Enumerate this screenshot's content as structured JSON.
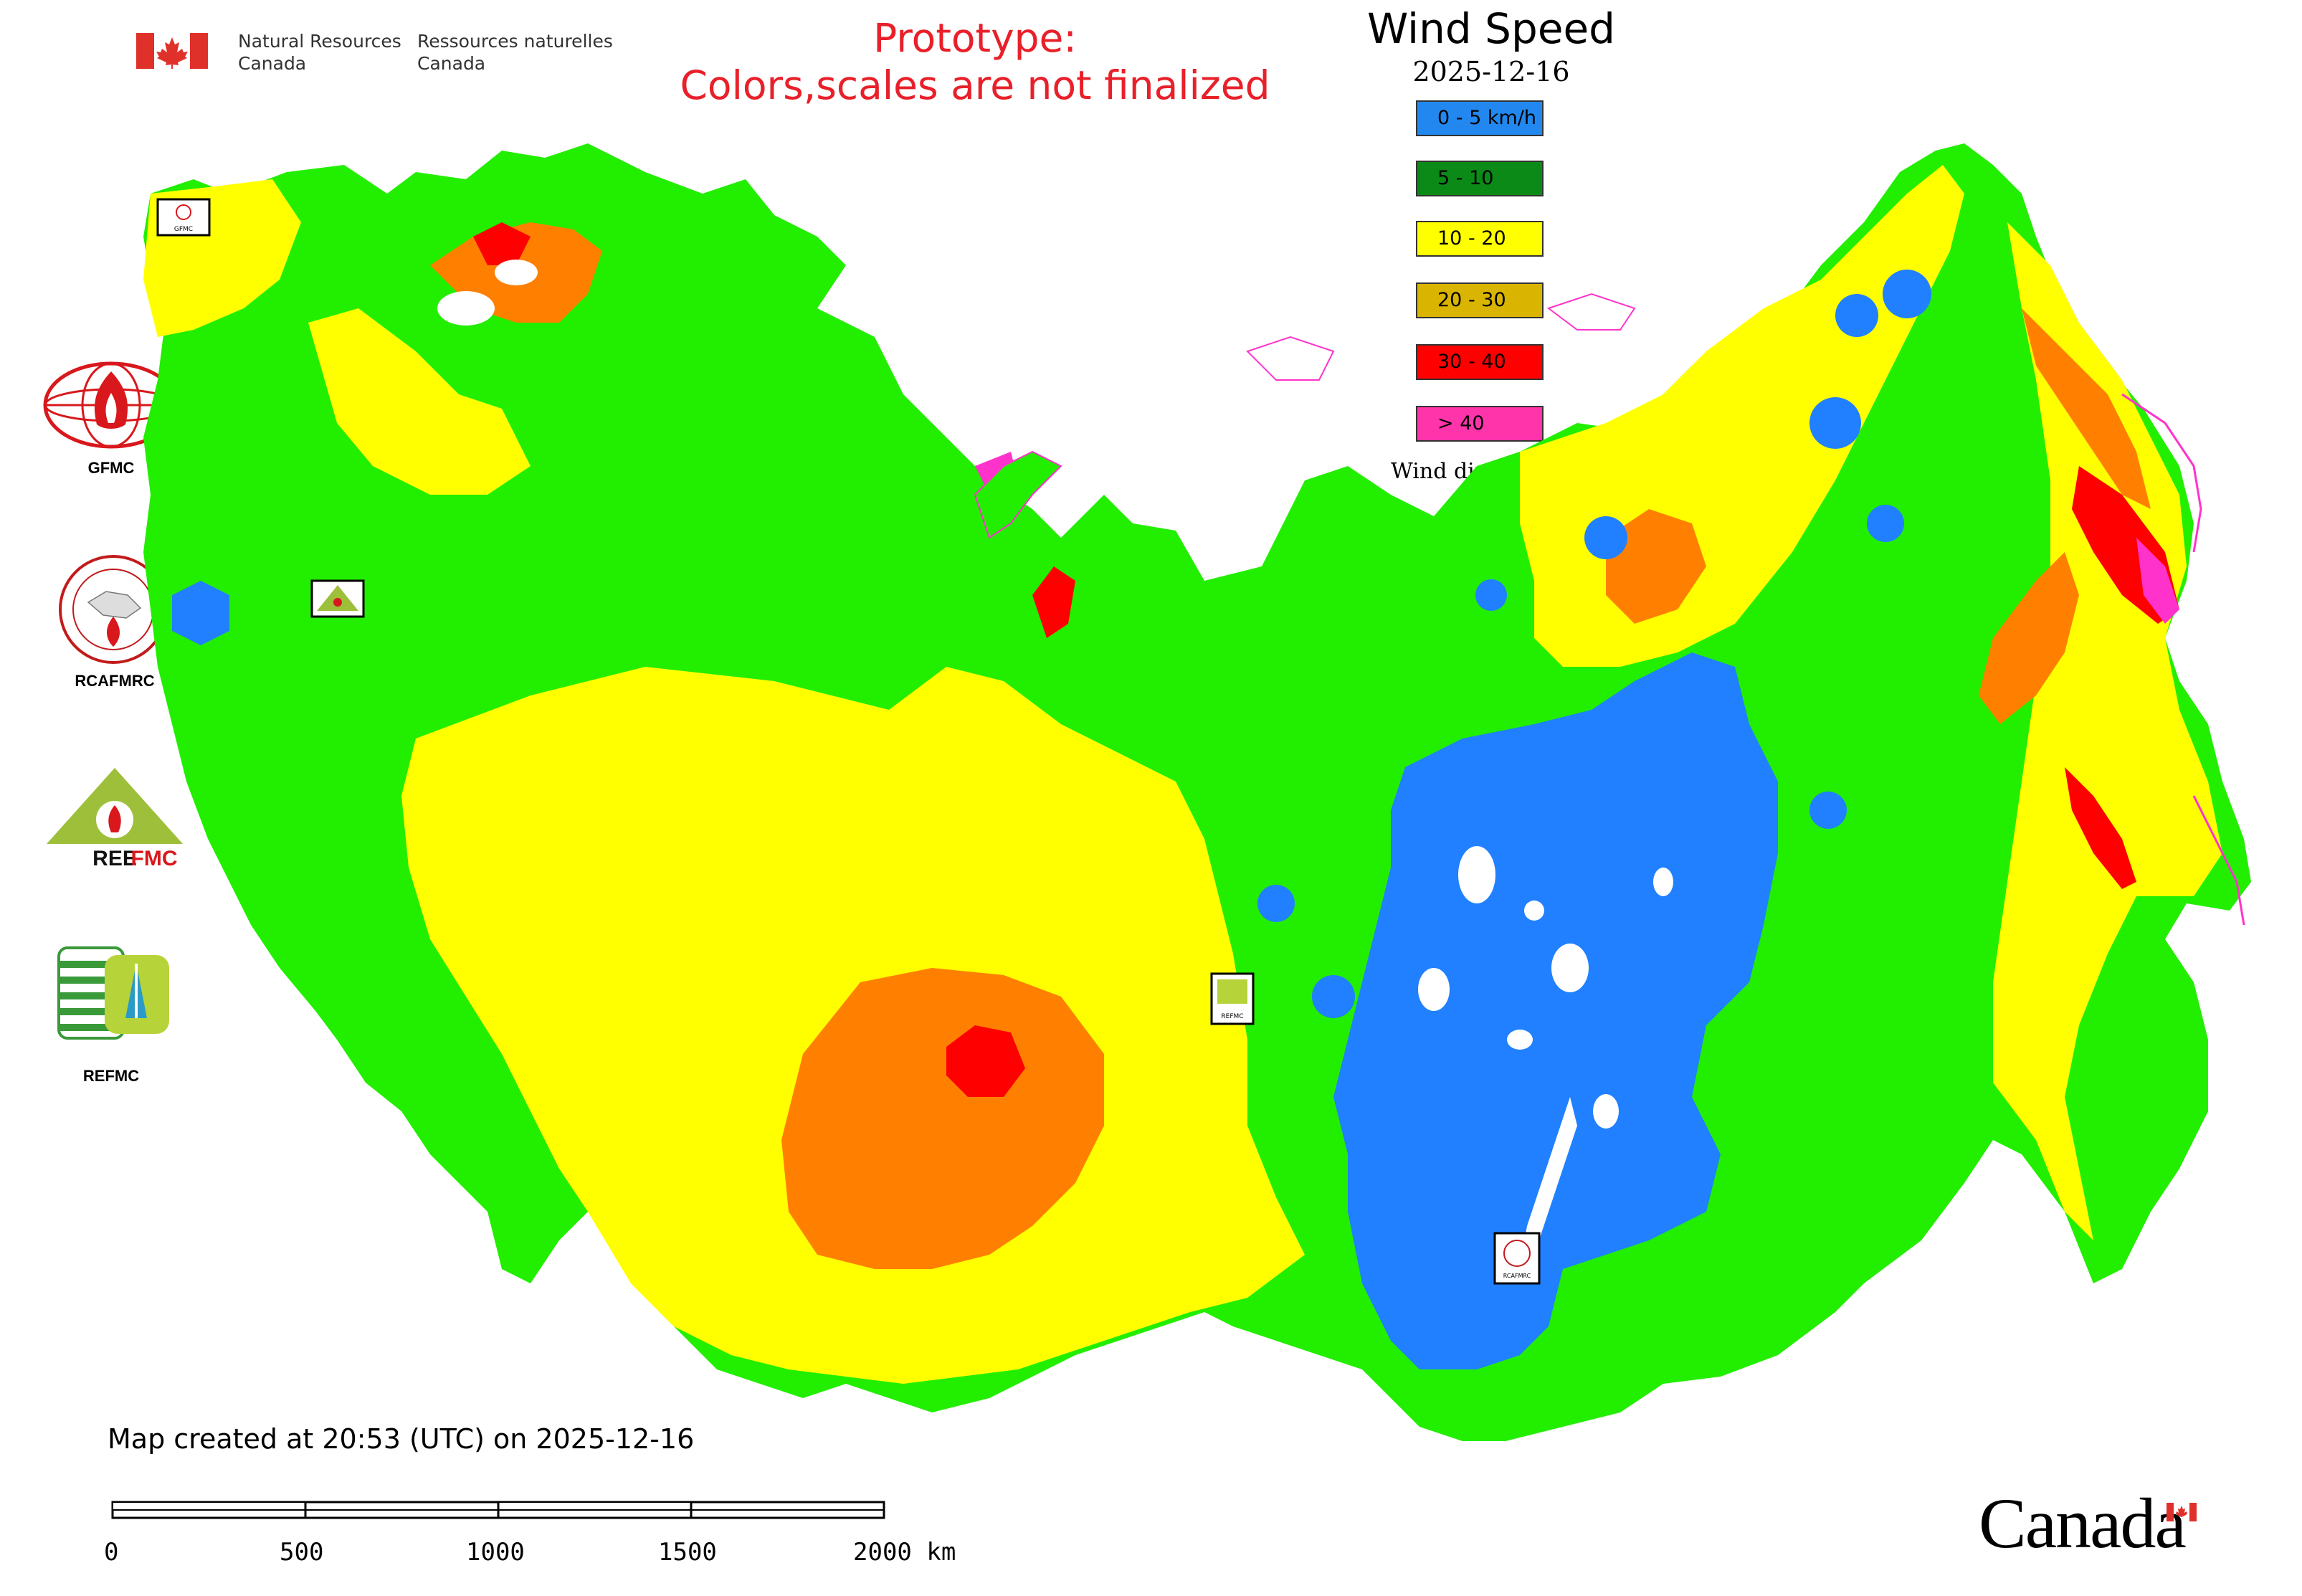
{
  "header": {
    "gov_en": [
      "Natural Resources",
      "Canada"
    ],
    "gov_fr": [
      "Ressources naturelles",
      "Canada"
    ],
    "prototype": [
      "Prototype:",
      "Colors,scales are not finalized"
    ]
  },
  "legend": {
    "title": "Wind Speed",
    "date": "2025-12-16",
    "items": [
      {
        "label": "0 - 5 km/h",
        "color": "#2288f0"
      },
      {
        "label": "5 - 10",
        "color": "#0b8a17"
      },
      {
        "label": "10 - 20",
        "color": "#ffff00"
      },
      {
        "label": "20 - 30",
        "color": "#d9b400"
      },
      {
        "label": "30 - 40",
        "color": "#ff0000"
      },
      {
        "label": "> 40",
        "color": "#ff33aa"
      }
    ],
    "wind_direction": "Wind direction"
  },
  "logos": [
    {
      "name": "GFMC"
    },
    {
      "name": "RCAFMRC"
    },
    {
      "name": "REEFMC"
    },
    {
      "name": "REFMC"
    }
  ],
  "map_badges": {
    "gfmc": "GFMC",
    "reefmc_small": "REEFMC",
    "refmc": "REFMC",
    "rcafmrc": "RCAFMRC"
  },
  "palette": {
    "calm": "#2080ff",
    "green": "#22ee00",
    "yellow": "#ffff00",
    "orange": "#ff8000",
    "red": "#ff0000",
    "magenta": "#ff33cc"
  },
  "footer": {
    "created": "Map created at 20:53 (UTC) on 2025-12-16",
    "scale_ticks": [
      "0",
      "500",
      "1000",
      "1500",
      "2000 km"
    ],
    "wordmark": "Canada"
  }
}
